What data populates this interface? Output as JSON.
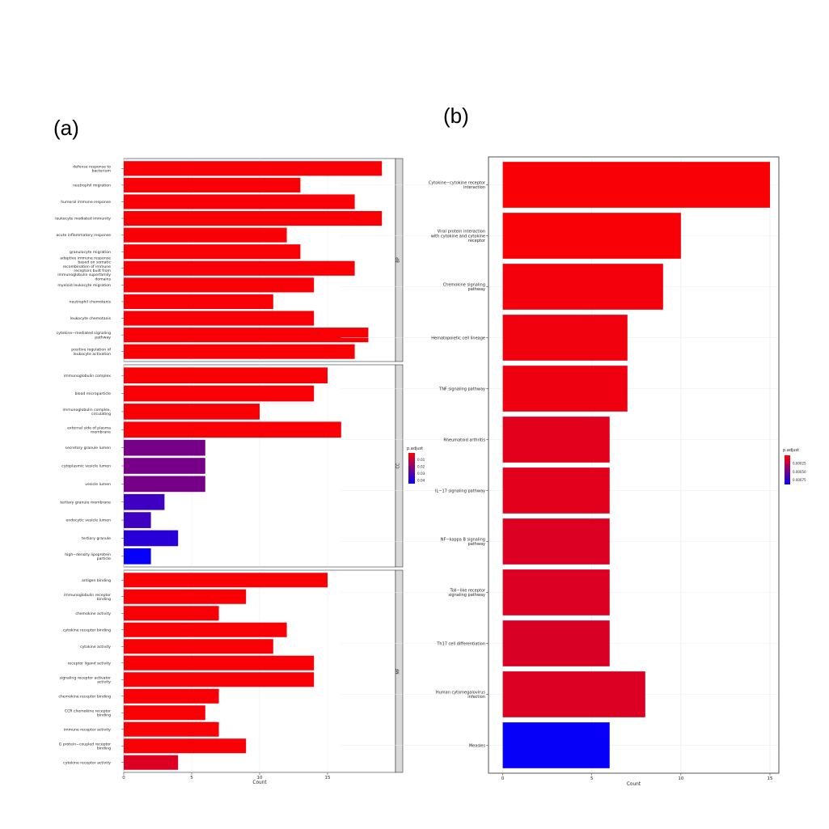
{
  "panel_labels": {
    "a": "(a)",
    "b": "(b)"
  },
  "chart_data": [
    {
      "type": "bar",
      "panel": "(a)",
      "orientation": "horizontal",
      "xlabel": "Count",
      "xlim": [
        0,
        20
      ],
      "xticks": [
        0,
        5,
        10,
        15
      ],
      "grid": true,
      "legend": {
        "title": "p.adjust",
        "position": "right",
        "ticks": [
          "0.01",
          "0.02",
          "0.03",
          "0.04"
        ],
        "colors": {
          "low": "#ff0000",
          "high": "#0000ff"
        },
        "range": [
          0,
          0.045
        ]
      },
      "facets": [
        {
          "strip": "BP",
          "categories": [
            "defense response to bacterium",
            "neutrophil migration",
            "humoral immune response",
            "leukocyte mediated immunity",
            "acute inflammatory response",
            "granulocyte migration",
            "adaptive immune response based on somatic recombination of immune receptors built from immunoglobulin superfamily domains",
            "myeloid leukocyte migration",
            "neutrophil chemotaxis",
            "leukocyte chemotaxis",
            "cytokine−mediated signaling pathway",
            "positive regulation of leukocyte activation"
          ],
          "values": [
            19,
            13,
            17,
            19,
            12,
            13,
            17,
            14,
            11,
            14,
            18,
            17
          ],
          "padj": [
            0.001,
            0.001,
            0.001,
            0.001,
            0.001,
            0.001,
            0.001,
            0.001,
            0.001,
            0.001,
            0.001,
            0.001
          ]
        },
        {
          "strip": "CC",
          "categories": [
            "immunoglobulin complex",
            "blood microparticle",
            "immunoglobulin complex, circulating",
            "external side of plasma membrane",
            "secretory granule lumen",
            "cytoplasmic vesicle lumen",
            "vesicle lumen",
            "tertiary granule membrane",
            "endocytic vesicle lumen",
            "tertiary granule",
            "high−density lipoprotein particle"
          ],
          "values": [
            15,
            14,
            10,
            16,
            6,
            6,
            6,
            3,
            2,
            4,
            2
          ],
          "padj": [
            0.001,
            0.001,
            0.001,
            0.001,
            0.024,
            0.024,
            0.024,
            0.034,
            0.034,
            0.038,
            0.044
          ]
        },
        {
          "strip": "MF",
          "categories": [
            "antigen binding",
            "immunoglobulin receptor binding",
            "chemokine activity",
            "cytokine receptor binding",
            "cytokine activity",
            "receptor ligand activity",
            "signaling receptor activator activity",
            "chemokine receptor binding",
            "CCR chemokine receptor binding",
            "immune receptor activity",
            "G protein−coupled receptor binding",
            "cytokine receptor activity"
          ],
          "values": [
            15,
            9,
            7,
            12,
            11,
            14,
            14,
            7,
            6,
            7,
            9,
            4
          ],
          "padj": [
            0.001,
            0.001,
            0.001,
            0.001,
            0.001,
            0.001,
            0.001,
            0.001,
            0.001,
            0.001,
            0.001,
            0.006
          ]
        }
      ]
    },
    {
      "type": "bar",
      "panel": "(b)",
      "orientation": "horizontal",
      "xlabel": "Count",
      "xlim": [
        0,
        15.5
      ],
      "xticks": [
        0,
        5,
        10,
        15
      ],
      "grid": true,
      "legend": {
        "title": "p.adjust",
        "position": "right",
        "ticks": [
          "0.00025",
          "0.00050",
          "0.00075"
        ],
        "colors": {
          "low": "#ff0000",
          "high": "#0000ff"
        },
        "range": [
          0,
          0.00088
        ]
      },
      "categories": [
        "Cytokine−cytokine receptor interaction",
        "Viral protein interaction with cytokine and cytokine receptor",
        "Chemokine signaling pathway",
        "Hematopoietic cell lineage",
        "TNF signaling pathway",
        "Rheumatoid arthritis",
        "IL−17 signaling pathway",
        "NF−kappa B signaling pathway",
        "Toll−like receptor signaling pathway",
        "Th17 cell differentiation",
        "Human cytomegalovirus infection",
        "Measles"
      ],
      "values": [
        15,
        10,
        9,
        7,
        7,
        6,
        6,
        6,
        6,
        6,
        8,
        6
      ],
      "padj": [
        2e-05,
        2e-05,
        4e-05,
        5e-05,
        6e-05,
        0.0001,
        0.0001,
        0.00012,
        0.00012,
        0.00013,
        0.00012,
        0.00086
      ]
    }
  ]
}
